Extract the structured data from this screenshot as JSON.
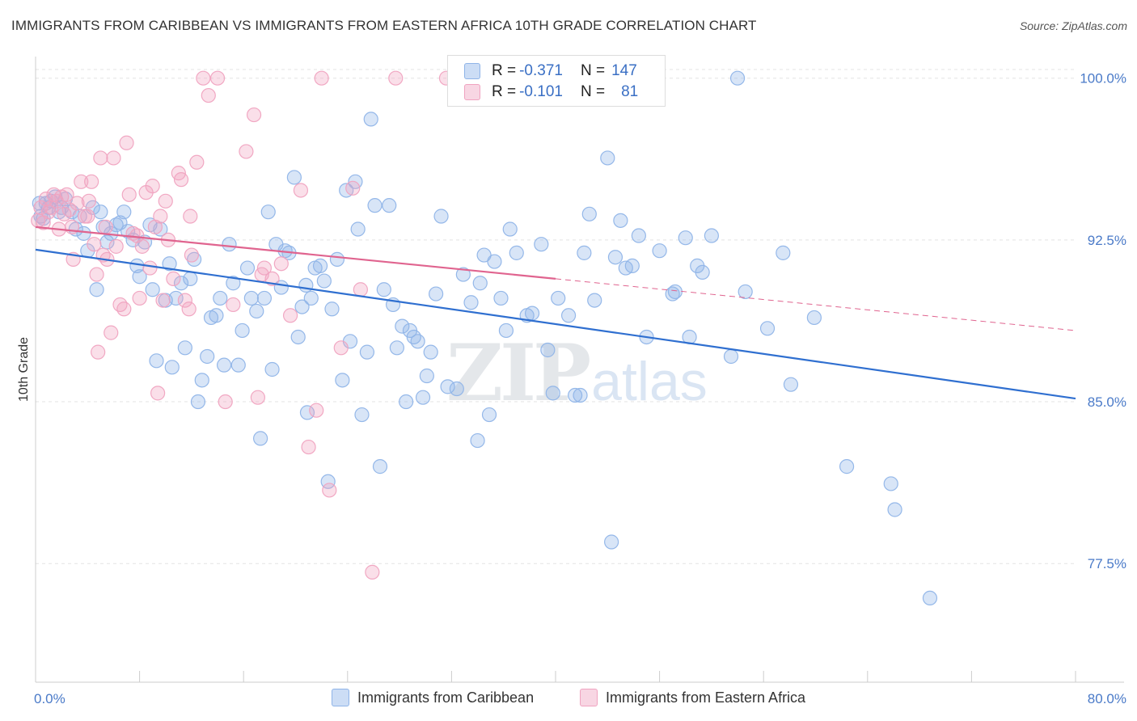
{
  "title": "IMMIGRANTS FROM CARIBBEAN VS IMMIGRANTS FROM EASTERN AFRICA 10TH GRADE CORRELATION CHART",
  "source": "Source: ZipAtlas.com",
  "watermark": {
    "zip": "ZIP",
    "atlas": "atlas"
  },
  "stats": [
    {
      "r_label": "R = ",
      "r_value": "-0.371",
      "n_label": "N = ",
      "n_value": "147",
      "color": "#8fb4e8"
    },
    {
      "r_label": "R = ",
      "r_value": "-0.101",
      "n_label": "N = ",
      "n_value": "81",
      "color": "#f0a3c0"
    }
  ],
  "chart_data": {
    "type": "scatter",
    "title": "IMMIGRANTS FROM CARIBBEAN VS IMMIGRANTS FROM EASTERN AFRICA 10TH GRADE CORRELATION CHART",
    "xlabel": "",
    "ylabel": "10th Grade",
    "xlim": [
      0,
      80
    ],
    "ylim": [
      72.0,
      101.0
    ],
    "x_tick_labels": [
      "0.0%",
      "80.0%"
    ],
    "y_ticks": [
      77.5,
      85.0,
      92.5,
      100.0
    ],
    "y_tick_labels": [
      "77.5%",
      "85.0%",
      "92.5%",
      "100.0%"
    ],
    "grid": true,
    "legend_position": "bottom",
    "series": [
      {
        "name": "Immigrants from Caribbean",
        "color": "#8fb4e8",
        "line_color": "#2f6fd0",
        "trend": {
          "x0": 0,
          "y0": 92.05,
          "x1": 80,
          "y1": 85.15
        },
        "points": [
          [
            0.3,
            94.2
          ],
          [
            0.4,
            93.6
          ],
          [
            0.6,
            93.5
          ],
          [
            0.8,
            94.2
          ],
          [
            1.0,
            94.0
          ],
          [
            1.2,
            94.3
          ],
          [
            1.5,
            94.5
          ],
          [
            1.8,
            93.8
          ],
          [
            2.0,
            94.0
          ],
          [
            2.3,
            94.4
          ],
          [
            2.8,
            93.8
          ],
          [
            3.1,
            93.0
          ],
          [
            3.4,
            93.6
          ],
          [
            3.7,
            92.8
          ],
          [
            4.0,
            92.0
          ],
          [
            4.4,
            94.0
          ],
          [
            4.7,
            90.2
          ],
          [
            5.0,
            93.8
          ],
          [
            5.2,
            93.1
          ],
          [
            5.5,
            92.4
          ],
          [
            5.8,
            92.8
          ],
          [
            6.2,
            93.2
          ],
          [
            6.5,
            93.3
          ],
          [
            6.8,
            93.8
          ],
          [
            7.1,
            92.9
          ],
          [
            7.5,
            92.5
          ],
          [
            7.8,
            91.3
          ],
          [
            8.0,
            90.8
          ],
          [
            8.4,
            92.4
          ],
          [
            8.8,
            93.2
          ],
          [
            9.0,
            90.2
          ],
          [
            9.3,
            86.9
          ],
          [
            9.6,
            93.0
          ],
          [
            10.0,
            89.7
          ],
          [
            10.3,
            91.4
          ],
          [
            10.5,
            86.6
          ],
          [
            10.8,
            89.8
          ],
          [
            11.2,
            90.5
          ],
          [
            11.5,
            87.5
          ],
          [
            11.9,
            90.7
          ],
          [
            12.2,
            91.6
          ],
          [
            12.5,
            85.0
          ],
          [
            12.8,
            86.0
          ],
          [
            13.2,
            87.1
          ],
          [
            13.5,
            88.9
          ],
          [
            13.9,
            89.0
          ],
          [
            14.2,
            89.8
          ],
          [
            14.5,
            86.7
          ],
          [
            14.9,
            92.3
          ],
          [
            15.2,
            90.5
          ],
          [
            15.6,
            86.7
          ],
          [
            15.9,
            88.3
          ],
          [
            16.3,
            91.2
          ],
          [
            16.6,
            89.8
          ],
          [
            17.0,
            89.2
          ],
          [
            17.3,
            83.3
          ],
          [
            17.6,
            89.8
          ],
          [
            17.9,
            93.8
          ],
          [
            18.2,
            86.5
          ],
          [
            18.5,
            92.3
          ],
          [
            18.9,
            90.3
          ],
          [
            19.2,
            92.0
          ],
          [
            19.5,
            91.9
          ],
          [
            19.9,
            95.4
          ],
          [
            20.2,
            88.0
          ],
          [
            20.5,
            89.4
          ],
          [
            20.9,
            84.5
          ],
          [
            21.2,
            89.8
          ],
          [
            21.5,
            91.2
          ],
          [
            21.9,
            91.3
          ],
          [
            22.2,
            90.6
          ],
          [
            22.5,
            81.3
          ],
          [
            22.8,
            89.3
          ],
          [
            23.2,
            91.6
          ],
          [
            23.6,
            86.0
          ],
          [
            23.9,
            94.8
          ],
          [
            24.2,
            87.8
          ],
          [
            24.6,
            95.2
          ],
          [
            24.8,
            93.0
          ],
          [
            25.1,
            84.4
          ],
          [
            25.5,
            87.3
          ],
          [
            25.8,
            98.1
          ],
          [
            26.1,
            94.1
          ],
          [
            26.5,
            82.0
          ],
          [
            26.8,
            90.2
          ],
          [
            27.2,
            94.1
          ],
          [
            27.5,
            89.5
          ],
          [
            27.8,
            87.5
          ],
          [
            28.2,
            88.5
          ],
          [
            28.5,
            85.0
          ],
          [
            28.8,
            88.3
          ],
          [
            29.1,
            88.0
          ],
          [
            29.4,
            87.8
          ],
          [
            29.8,
            85.2
          ],
          [
            30.1,
            86.2
          ],
          [
            30.4,
            87.3
          ],
          [
            30.8,
            90.0
          ],
          [
            31.2,
            93.6
          ],
          [
            31.7,
            85.7
          ],
          [
            32.4,
            85.6
          ],
          [
            32.9,
            90.9
          ],
          [
            33.5,
            89.6
          ],
          [
            34.0,
            83.2
          ],
          [
            34.5,
            91.8
          ],
          [
            34.9,
            84.4
          ],
          [
            35.3,
            91.5
          ],
          [
            35.8,
            89.8
          ],
          [
            36.2,
            88.3
          ],
          [
            36.5,
            93.0
          ],
          [
            37.0,
            91.9
          ],
          [
            37.8,
            89.0
          ],
          [
            38.2,
            89.1
          ],
          [
            38.9,
            92.3
          ],
          [
            39.4,
            87.4
          ],
          [
            39.8,
            85.4
          ],
          [
            40.2,
            89.8
          ],
          [
            41.0,
            89.0
          ],
          [
            41.5,
            85.3
          ],
          [
            41.9,
            85.3
          ],
          [
            42.2,
            91.9
          ],
          [
            42.6,
            93.7
          ],
          [
            43.0,
            89.7
          ],
          [
            44.0,
            96.3
          ],
          [
            44.3,
            78.5
          ],
          [
            44.6,
            91.7
          ],
          [
            45.0,
            93.4
          ],
          [
            45.4,
            91.2
          ],
          [
            45.9,
            91.3
          ],
          [
            46.4,
            92.7
          ],
          [
            47.0,
            88.0
          ],
          [
            48.0,
            92.0
          ],
          [
            49.0,
            90.0
          ],
          [
            49.2,
            90.1
          ],
          [
            50.0,
            92.6
          ],
          [
            50.3,
            88.0
          ],
          [
            50.9,
            91.3
          ],
          [
            51.3,
            91.0
          ],
          [
            52.0,
            92.7
          ],
          [
            53.5,
            87.1
          ],
          [
            54.0,
            100.0
          ],
          [
            54.6,
            90.1
          ],
          [
            56.3,
            88.4
          ],
          [
            57.5,
            91.9
          ],
          [
            58.1,
            85.8
          ],
          [
            59.9,
            88.9
          ],
          [
            62.4,
            82.0
          ],
          [
            65.8,
            81.2
          ],
          [
            66.1,
            80.0
          ],
          [
            68.8,
            75.9
          ],
          [
            20.8,
            90.4
          ],
          [
            34.2,
            90.5
          ]
        ]
      },
      {
        "name": "Immigrants from Eastern Africa",
        "color": "#f0a3c0",
        "line_color": "#e0648f",
        "trend": {
          "x0": 0,
          "y0": 93.1,
          "x1": 80,
          "y1": 88.3,
          "solid_until": 40
        },
        "points": [
          [
            0.2,
            93.4
          ],
          [
            0.4,
            94.0
          ],
          [
            0.6,
            93.3
          ],
          [
            0.8,
            94.4
          ],
          [
            1.0,
            93.8
          ],
          [
            1.2,
            94.0
          ],
          [
            1.4,
            94.6
          ],
          [
            1.6,
            94.3
          ],
          [
            1.8,
            93.0
          ],
          [
            2.0,
            94.5
          ],
          [
            2.2,
            93.7
          ],
          [
            2.4,
            94.6
          ],
          [
            2.6,
            93.9
          ],
          [
            2.8,
            93.1
          ],
          [
            2.9,
            91.6
          ],
          [
            3.2,
            94.2
          ],
          [
            3.5,
            95.2
          ],
          [
            3.8,
            93.6
          ],
          [
            4.0,
            93.6
          ],
          [
            4.1,
            94.3
          ],
          [
            4.3,
            95.2
          ],
          [
            4.5,
            92.3
          ],
          [
            4.7,
            90.9
          ],
          [
            4.8,
            87.3
          ],
          [
            5.0,
            96.3
          ],
          [
            5.2,
            91.8
          ],
          [
            5.4,
            93.1
          ],
          [
            5.5,
            91.6
          ],
          [
            5.8,
            88.2
          ],
          [
            6.0,
            96.3
          ],
          [
            6.2,
            92.2
          ],
          [
            6.5,
            89.5
          ],
          [
            6.8,
            89.3
          ],
          [
            7.0,
            97.0
          ],
          [
            7.2,
            94.6
          ],
          [
            7.5,
            92.8
          ],
          [
            7.8,
            92.7
          ],
          [
            8.0,
            89.8
          ],
          [
            8.2,
            92.2
          ],
          [
            8.5,
            94.7
          ],
          [
            8.8,
            91.2
          ],
          [
            9.0,
            95.0
          ],
          [
            9.2,
            93.1
          ],
          [
            9.4,
            85.4
          ],
          [
            9.6,
            93.6
          ],
          [
            9.8,
            89.7
          ],
          [
            10.0,
            94.3
          ],
          [
            10.2,
            92.5
          ],
          [
            10.6,
            90.7
          ],
          [
            11.0,
            95.6
          ],
          [
            11.2,
            95.3
          ],
          [
            11.5,
            89.7
          ],
          [
            11.8,
            89.3
          ],
          [
            12.0,
            91.8
          ],
          [
            12.4,
            96.1
          ],
          [
            12.9,
            100.0
          ],
          [
            13.3,
            99.2
          ],
          [
            14.0,
            100.0
          ],
          [
            14.6,
            85.0
          ],
          [
            15.2,
            89.5
          ],
          [
            16.2,
            96.6
          ],
          [
            16.8,
            98.3
          ],
          [
            17.1,
            85.2
          ],
          [
            17.6,
            91.2
          ],
          [
            18.2,
            90.7
          ],
          [
            18.9,
            91.4
          ],
          [
            19.6,
            89.0
          ],
          [
            20.4,
            94.8
          ],
          [
            21.0,
            82.9
          ],
          [
            21.6,
            84.6
          ],
          [
            22.0,
            100.0
          ],
          [
            22.6,
            80.9
          ],
          [
            23.5,
            87.5
          ],
          [
            24.4,
            94.9
          ],
          [
            25.0,
            90.2
          ],
          [
            25.9,
            77.1
          ],
          [
            27.7,
            100.0
          ],
          [
            31.6,
            100.0
          ],
          [
            34.0,
            100.0
          ],
          [
            11.9,
            93.6
          ],
          [
            17.4,
            90.9
          ]
        ]
      }
    ]
  },
  "legend": [
    {
      "label": "Immigrants from Caribbean",
      "color": "#8fb4e8"
    },
    {
      "label": "Immigrants from Eastern Africa",
      "color": "#f0a3c0"
    }
  ]
}
